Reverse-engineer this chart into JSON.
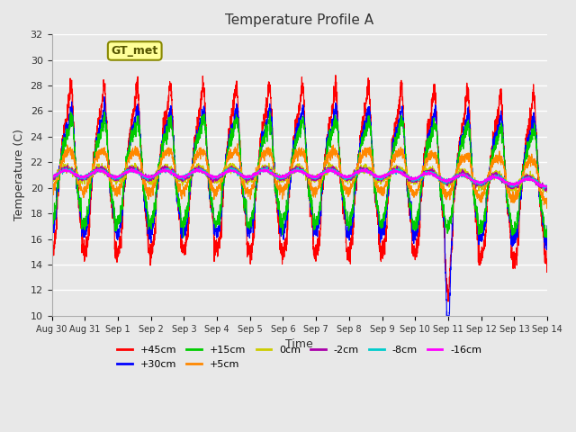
{
  "title": "Temperature Profile A",
  "xlabel": "Time",
  "ylabel": "Temperature (C)",
  "gt_label": "GT_met",
  "ylim": [
    10,
    32
  ],
  "yticks": [
    10,
    12,
    14,
    16,
    18,
    20,
    22,
    24,
    26,
    28,
    30,
    32
  ],
  "x_start_days": 0,
  "x_end_days": 15,
  "num_points": 3360,
  "series_colors": {
    "+45cm": "#ff0000",
    "+30cm": "#0000ff",
    "+15cm": "#00cc00",
    "+5cm": "#ff8800",
    "0cm": "#cccc00",
    "-2cm": "#aa00aa",
    "-8cm": "#00cccc",
    "-16cm": "#ff00ff"
  },
  "series_order": [
    "+45cm",
    "+30cm",
    "+15cm",
    "+5cm",
    "0cm",
    "-2cm",
    "-8cm",
    "-16cm"
  ],
  "bg_color": "#e8e8e8",
  "plot_bg_color": "#e8e8e8",
  "grid_color": "#ffffff",
  "legend_box_color": "#ffff99",
  "legend_box_edge": "#888800",
  "xtick_labels": [
    "Aug 30",
    "Aug 31",
    "Sep 1",
    "Sep 2",
    "Sep 3",
    "Sep 4",
    "Sep 5",
    "Sep 6",
    "Sep 7",
    "Sep 8",
    "Sep 9",
    "Sep 10",
    "Sep 11",
    "Sep 12",
    "Sep 13",
    "Sep 14"
  ],
  "xtick_positions": [
    0,
    1,
    2,
    3,
    4,
    5,
    6,
    7,
    8,
    9,
    10,
    11,
    12,
    13,
    14,
    15
  ]
}
